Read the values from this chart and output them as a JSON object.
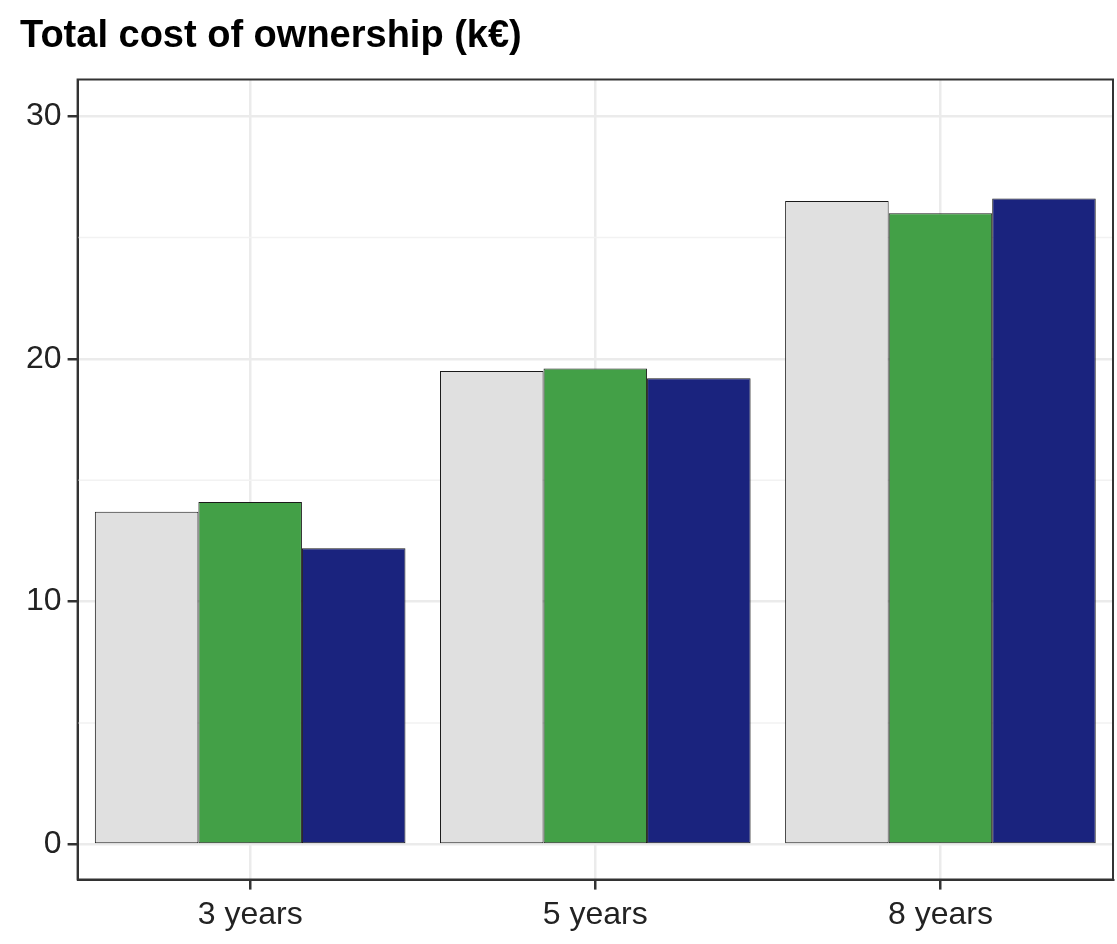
{
  "chart_data": {
    "type": "bar",
    "title": "Total cost of ownership (k€)",
    "categories": [
      "3 years",
      "5 years",
      "8 years"
    ],
    "series": [
      {
        "color": "#e0e0e0",
        "values": [
          13.7,
          19.5,
          26.5
        ]
      },
      {
        "color": "#43a047",
        "values": [
          14.1,
          19.6,
          26.0
        ]
      },
      {
        "color": "#1a237e",
        "values": [
          12.2,
          19.2,
          26.6
        ]
      }
    ],
    "ylim": [
      -1.45,
      31.5
    ],
    "yticks": [
      0,
      10,
      20,
      30
    ],
    "grid": true,
    "legend": false
  }
}
